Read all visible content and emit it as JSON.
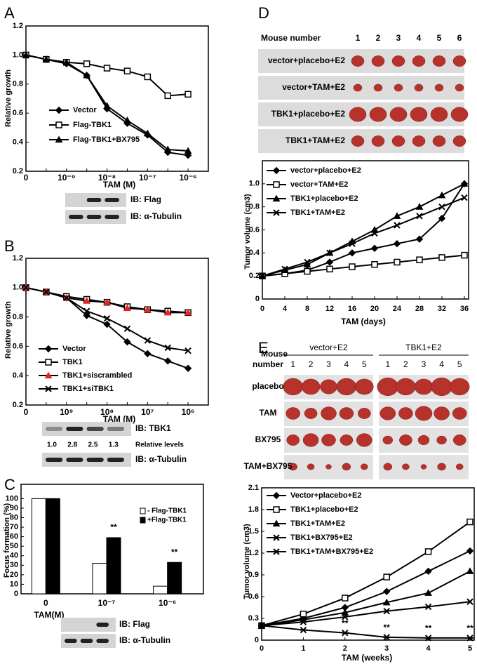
{
  "chart_data": [
    {
      "type": "line",
      "panel": "A",
      "ylabel": "Relative growth",
      "xlabel": "TAM (M)",
      "categories": [
        "0",
        null,
        "10⁻⁹",
        null,
        "10⁻⁸",
        null,
        "10⁻⁷",
        null,
        "10⁻⁶"
      ],
      "series": [
        {
          "name": "Vector",
          "color": "#000000",
          "marker": "diamond",
          "values": [
            1.0,
            0.97,
            0.94,
            0.86,
            0.63,
            0.53,
            0.45,
            0.33,
            0.31
          ]
        },
        {
          "name": "Flag-TBK1",
          "color": "#000000",
          "marker": "square-open",
          "values": [
            1.0,
            0.97,
            0.95,
            0.94,
            0.91,
            0.89,
            0.85,
            0.72,
            0.73
          ]
        },
        {
          "name": "Flag-TBK1+BX795",
          "color": "#000000",
          "marker": "triangle",
          "values": [
            1.0,
            0.97,
            0.95,
            0.86,
            0.65,
            0.55,
            0.46,
            0.35,
            0.34
          ]
        }
      ],
      "ylim": [
        0.2,
        1.2
      ],
      "yticks": [
        0.2,
        0.4,
        0.6,
        0.8,
        {
          "value": 1,
          "label": "1.0"
        },
        1.2
      ]
    },
    {
      "type": "line",
      "panel": "B",
      "ylabel": "Relative growth",
      "xlabel": "TAM (M)",
      "categories": [
        "0",
        null,
        "10⁹",
        null,
        "10⁸",
        null,
        "10⁷",
        null,
        "10⁶"
      ],
      "series": [
        {
          "name": "Vector",
          "color": "#000000",
          "marker": "diamond",
          "values": [
            1.0,
            0.97,
            0.93,
            0.81,
            0.75,
            0.63,
            0.55,
            0.5,
            0.45
          ]
        },
        {
          "name": "TBK1",
          "color": "#000000",
          "marker": "square-open",
          "values": [
            1.0,
            0.97,
            0.94,
            0.92,
            0.9,
            0.87,
            0.85,
            0.84,
            0.83
          ]
        },
        {
          "name": "TBK1+siscrambled",
          "color": "#e8231f",
          "marker": "triangle",
          "values": [
            1.0,
            0.97,
            0.93,
            0.91,
            0.9,
            0.86,
            0.85,
            0.83,
            0.83
          ]
        },
        {
          "name": "TBK1+siTBK1",
          "color": "#000000",
          "marker": "x",
          "values": [
            1.0,
            0.97,
            0.93,
            0.84,
            0.79,
            0.72,
            0.64,
            0.59,
            0.57
          ]
        }
      ],
      "ylim": [
        0.2,
        1.2
      ],
      "yticks": [
        0.2,
        0.4,
        0.6,
        0.8,
        {
          "value": 1,
          "label": "1.0"
        },
        1.2
      ]
    },
    {
      "type": "bar",
      "panel": "C",
      "ylabel": "Focus formation (%)",
      "xlabel": "TAM(M)",
      "categories": [
        "0",
        "10⁻⁷",
        "10⁻⁶"
      ],
      "series": [
        {
          "name": "- Flag-TBK1",
          "color": "#ffffff",
          "values": [
            100,
            32,
            8
          ]
        },
        {
          "name": "+Flag-TBK1",
          "color": "#000000",
          "values": [
            100,
            59,
            33
          ]
        }
      ],
      "ylim": [
        0,
        115
      ],
      "yticks": [
        0,
        10,
        20,
        30,
        40,
        50,
        60,
        70,
        80,
        90,
        100
      ],
      "annotations": [
        {
          "text": "**",
          "category": 1
        },
        {
          "text": "**",
          "category": 2
        }
      ]
    },
    {
      "type": "line",
      "panel": "D",
      "ylabel": "Tumor volume (cm3)",
      "xlabel": "TAM (days)",
      "x": [
        0,
        4,
        8,
        12,
        16,
        20,
        24,
        28,
        32,
        36
      ],
      "series": [
        {
          "name": "vector+placebo+E2",
          "color": "#000000",
          "marker": "diamond",
          "values": [
            0.2,
            0.22,
            0.25,
            0.32,
            0.4,
            0.44,
            0.48,
            0.52,
            0.7,
            1.0
          ]
        },
        {
          "name": "vector+TAM+E2",
          "color": "#000000",
          "marker": "square-open",
          "values": [
            0.2,
            0.22,
            0.24,
            0.26,
            0.28,
            0.3,
            0.32,
            0.34,
            0.36,
            0.38
          ]
        },
        {
          "name": "TBK1+placebo+E2",
          "color": "#000000",
          "marker": "triangle",
          "values": [
            0.2,
            0.25,
            0.3,
            0.4,
            0.5,
            0.6,
            0.72,
            0.8,
            0.9,
            1.0
          ]
        },
        {
          "name": "TBK1+TAM+E2",
          "color": "#000000",
          "marker": "x",
          "values": [
            0.2,
            0.26,
            0.32,
            0.4,
            0.48,
            0.57,
            0.64,
            0.72,
            0.8,
            0.88
          ]
        }
      ],
      "xlim": [
        0,
        36
      ],
      "xticks": [
        0,
        4,
        8,
        12,
        16,
        20,
        24,
        28,
        32,
        36
      ],
      "ylim": [
        0,
        1.2
      ],
      "yticks": [
        0,
        0.2,
        0.4,
        0.6,
        0.8,
        {
          "value": 1,
          "label": "1.0"
        }
      ]
    },
    {
      "type": "line",
      "panel": "E",
      "ylabel": "Tumor volume (cm3)",
      "xlabel": "TAM (weeks)",
      "x": [
        0,
        1,
        2,
        3,
        4,
        5
      ],
      "series": [
        {
          "name": "Vector+placebo+E2",
          "color": "#000000",
          "marker": "diamond",
          "values": [
            0.2,
            0.3,
            0.45,
            0.67,
            0.95,
            1.23
          ]
        },
        {
          "name": "TBK1+placebo+E2",
          "color": "#000000",
          "marker": "square-open",
          "values": [
            0.2,
            0.36,
            0.58,
            0.87,
            1.22,
            1.63
          ]
        },
        {
          "name": "TBK1+TAM+E2",
          "color": "#000000",
          "marker": "triangle",
          "values": [
            0.2,
            0.28,
            0.38,
            0.52,
            0.65,
            0.95
          ]
        },
        {
          "name": "TBK1+BX795+E2",
          "color": "#000000",
          "marker": "x",
          "values": [
            0.2,
            0.25,
            0.32,
            0.4,
            0.46,
            0.53
          ]
        },
        {
          "name": "TBK1+TAM+BX795+E2",
          "color": "#000000",
          "marker": "star",
          "values": [
            0.2,
            0.14,
            0.1,
            0.04,
            0.03,
            0.03
          ]
        }
      ],
      "xlim": [
        0,
        5
      ],
      "xticks": [
        0,
        1,
        2,
        3,
        4,
        5
      ],
      "ylim": [
        0,
        2.1
      ],
      "yticks": [
        0,
        0.3,
        0.6,
        0.9,
        1.2,
        1.5,
        1.8,
        2.1
      ],
      "annotations": [
        {
          "text": "**",
          "x": 2
        },
        {
          "text": "**",
          "x": 3
        },
        {
          "text": "**",
          "x": 4
        },
        {
          "text": "**",
          "x": 5
        }
      ]
    }
  ],
  "blots": [
    {
      "rows": [
        "IB: Flag",
        "IB: α-Tubulin"
      ]
    },
    {
      "rows": [
        "IB: TBK1",
        "IB: α-Tubulin"
      ],
      "relative_levels": [
        "1.0",
        "2.8",
        "2.5",
        "1.3"
      ],
      "levels_label": "Relative levels"
    },
    {
      "rows": [
        "IB: Flag",
        "IB: α-Tubulin"
      ]
    }
  ],
  "photos": [
    {
      "header": "Mouse number",
      "mice": [
        1,
        2,
        3,
        4,
        5,
        6
      ],
      "rows": [
        "vector+placebo+E2",
        "vector+TAM+E2",
        "TBK1+placebo+E2",
        "TBK1+TAM+E2"
      ]
    },
    {
      "header": [
        "Mouse",
        "number"
      ],
      "groups": [
        {
          "name": "vector+E2",
          "mice": [
            1,
            2,
            3,
            4,
            5
          ]
        },
        {
          "name": "TBK1+E2",
          "mice": [
            1,
            2,
            3,
            4,
            5
          ]
        }
      ],
      "rows": [
        "placebo",
        "TAM",
        "BX795",
        "TAM+BX795"
      ]
    }
  ]
}
